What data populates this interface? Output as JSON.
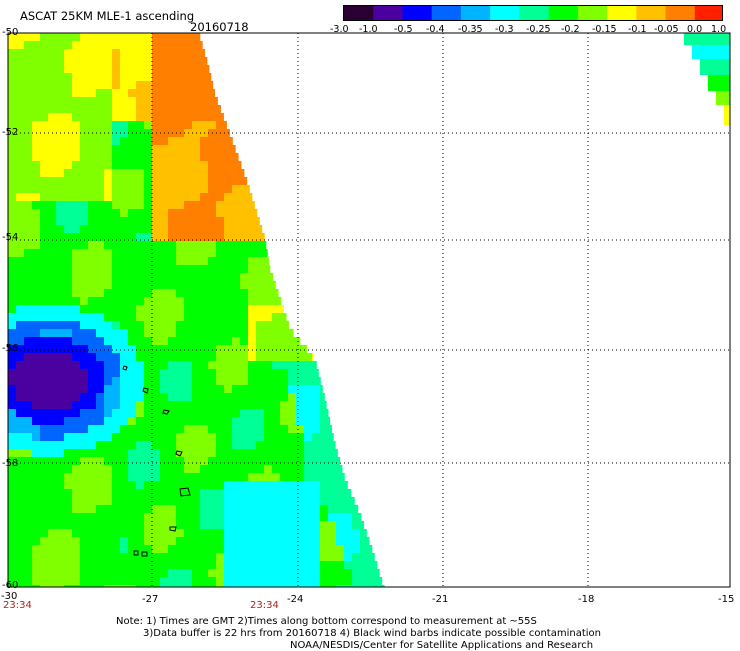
{
  "header": {
    "title": "ASCAT 25KM MLE-1 ascending",
    "date": "20160718"
  },
  "colorbar": {
    "labels": [
      "-3.0",
      "-1.0",
      "-0.5",
      "-0.4",
      "-0.35",
      "-0.3",
      "-0.25",
      "-0.2",
      "-0.15",
      "-0.1",
      "-0.05",
      "0.0",
      "1.0"
    ],
    "colors": [
      "#2a0033",
      "#4b00a0",
      "#0000ff",
      "#0066ff",
      "#00b4ff",
      "#00ffff",
      "#00ff96",
      "#00ff00",
      "#7fff00",
      "#ffff00",
      "#ffc000",
      "#ff7f00",
      "#ff2000"
    ]
  },
  "axes": {
    "lat_labels": [
      "-50",
      "-52",
      "-54",
      "-56",
      "-58",
      "-60"
    ],
    "lon_labels": [
      "-30",
      "-27",
      "-24",
      "-21",
      "-18",
      "-15"
    ],
    "lat_range": [
      -60,
      -50
    ],
    "lon_range": [
      -30,
      -15
    ]
  },
  "times": [
    "23:34",
    "23:34"
  ],
  "notes": {
    "line1": "Note: 1) Times are GMT 2)Times along bottom correspond to measurement at ~55S",
    "line2": "3)Data buffer is 22 hrs from 20160718 4) Black wind barbs indicate possible contamination",
    "line3": "NOAA/NESDIS/Center for Satellite Applications and Research"
  }
}
